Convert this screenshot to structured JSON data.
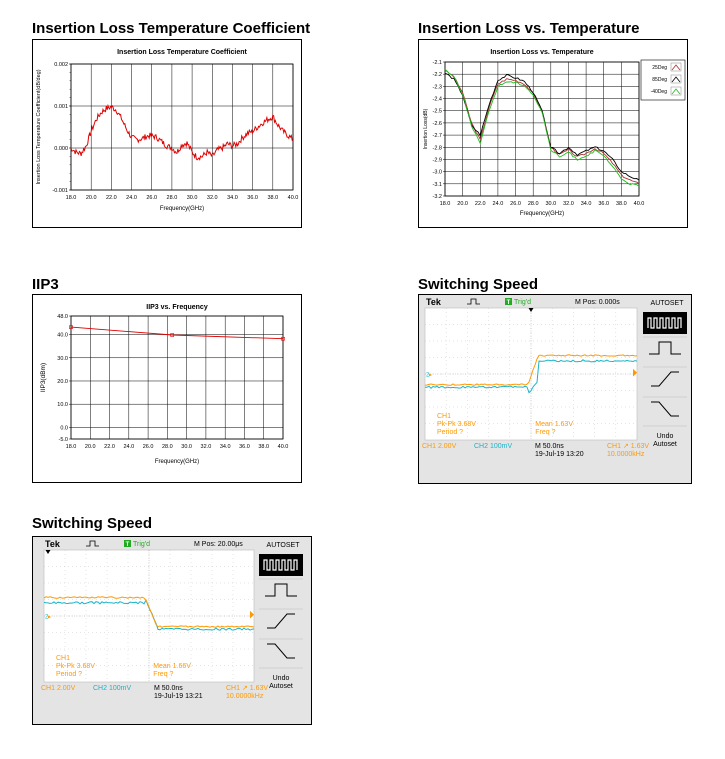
{
  "sections": {
    "il_coeff": "Insertion Loss Temperature Coefficient",
    "il_temp": "Insertion Loss vs. Temperature",
    "iip3": "IIP3",
    "sw1": "Switching Speed",
    "sw2": "Switching Speed"
  },
  "colors": {
    "trace_red": "#e00000",
    "scope_orange": "#ff9900",
    "scope_cyan": "#19b4c8",
    "trig_green": "#22aa22"
  },
  "chart_data": [
    {
      "id": "il_coeff",
      "type": "line",
      "title": "Insertion Loss Temperature Coefficient",
      "xlabel": "Frequency(GHz)",
      "ylabel": "Insertion Loss Temperature Coefficient(dB/deg)",
      "xlim": [
        18.0,
        40.0
      ],
      "ylim": [
        -0.001,
        0.002
      ],
      "xticks": [
        "18.0",
        "20.0",
        "22.0",
        "24.0",
        "26.0",
        "28.0",
        "30.0",
        "32.0",
        "34.0",
        "36.0",
        "38.0",
        "40.0"
      ],
      "yticks": [
        "0.002",
        "0.001",
        "0.000",
        "-0.001"
      ],
      "grid": true,
      "series": [
        {
          "color": "#e00000",
          "x": [
            18.0,
            18.5,
            19.0,
            19.5,
            20.0,
            20.5,
            21.0,
            21.5,
            22.0,
            22.5,
            23.0,
            23.5,
            24.0,
            24.5,
            25.0,
            25.5,
            26.0,
            26.5,
            27.0,
            27.5,
            28.0,
            28.5,
            29.0,
            29.5,
            30.0,
            30.5,
            31.0,
            31.5,
            32.0,
            32.5,
            33.0,
            33.5,
            34.0,
            34.5,
            35.0,
            35.5,
            36.0,
            36.5,
            37.0,
            37.5,
            38.0,
            38.5,
            39.0,
            39.5,
            40.0
          ],
          "y": [
            0.0,
            -0.0001,
            -0.00013,
            5e-05,
            0.0004,
            0.00068,
            0.00085,
            0.00094,
            0.00098,
            0.0009,
            0.0007,
            0.00045,
            0.00025,
            0.0002,
            0.00022,
            0.00028,
            0.0003,
            0.00025,
            0.00015,
            5e-05,
            0.0,
            -0.0001,
            8e-05,
            0.00012,
            -0.0001,
            -0.00022,
            -0.0002,
            -0.0001,
            -0.0002,
            -5e-05,
            0.0,
            0.0001,
            5e-05,
            0.0001,
            0.00025,
            0.00035,
            0.0004,
            0.0005,
            0.0006,
            0.00068,
            0.00075,
            0.00055,
            0.0004,
            0.0003,
            0.0002
          ]
        }
      ]
    },
    {
      "id": "il_temp",
      "type": "line",
      "title": "Insertion Loss vs. Temperature",
      "xlabel": "Frequency(GHz)",
      "ylabel": "Insertion Loss(dB)",
      "xlim": [
        18.0,
        40.0
      ],
      "ylim": [
        -3.2,
        -2.1
      ],
      "xticks": [
        "18.0",
        "20.0",
        "22.0",
        "24.0",
        "26.0",
        "28.0",
        "30.0",
        "32.0",
        "34.0",
        "36.0",
        "38.0",
        "40.0"
      ],
      "yticks": [
        "-2.1",
        "-2.2",
        "-2.3",
        "-2.4",
        "-2.5",
        "-2.6",
        "-2.7",
        "-2.8",
        "-2.9",
        "-3.0",
        "-3.1",
        "-3.2"
      ],
      "grid": true,
      "legend": "top-right",
      "series": [
        {
          "name": "25Deg",
          "color": "#b03030",
          "x": [
            18,
            19,
            20,
            21,
            22,
            23,
            24,
            25,
            26,
            27,
            28,
            29,
            30,
            31,
            32,
            33,
            34,
            35,
            36,
            37,
            38,
            39,
            40
          ],
          "y": [
            -2.17,
            -2.22,
            -2.35,
            -2.6,
            -2.74,
            -2.47,
            -2.28,
            -2.24,
            -2.25,
            -2.28,
            -2.36,
            -2.5,
            -2.8,
            -2.86,
            -2.82,
            -2.88,
            -2.85,
            -2.81,
            -2.85,
            -2.93,
            -3.03,
            -3.07,
            -3.1
          ]
        },
        {
          "name": "85Deg",
          "color": "#000000",
          "x": [
            18,
            19,
            20,
            21,
            22,
            23,
            24,
            25,
            26,
            27,
            28,
            29,
            30,
            31,
            32,
            33,
            34,
            35,
            36,
            37,
            38,
            39,
            40
          ],
          "y": [
            -2.19,
            -2.24,
            -2.37,
            -2.62,
            -2.7,
            -2.45,
            -2.25,
            -2.21,
            -2.23,
            -2.26,
            -2.35,
            -2.5,
            -2.8,
            -2.85,
            -2.8,
            -2.86,
            -2.83,
            -2.8,
            -2.83,
            -2.9,
            -3.0,
            -3.04,
            -3.07
          ]
        },
        {
          "name": "-40Deg",
          "color": "#22bb22",
          "x": [
            18,
            19,
            20,
            21,
            22,
            23,
            24,
            25,
            26,
            27,
            28,
            29,
            30,
            31,
            32,
            33,
            34,
            35,
            36,
            37,
            38,
            39,
            40
          ],
          "y": [
            -2.16,
            -2.22,
            -2.36,
            -2.62,
            -2.77,
            -2.5,
            -2.3,
            -2.26,
            -2.27,
            -2.29,
            -2.37,
            -2.51,
            -2.82,
            -2.88,
            -2.84,
            -2.9,
            -2.87,
            -2.83,
            -2.87,
            -2.96,
            -3.06,
            -3.1,
            -3.12
          ]
        }
      ]
    },
    {
      "id": "iip3",
      "type": "line",
      "title": "IIP3 vs. Frequency",
      "xlabel": "Frequency(GHz)",
      "ylabel": "IIP3(dBm)",
      "xlim": [
        18.0,
        40.0
      ],
      "ylim": [
        -5.0,
        48.0
      ],
      "xticks": [
        "18.0",
        "20.0",
        "22.0",
        "24.0",
        "26.0",
        "28.0",
        "30.0",
        "32.0",
        "34.0",
        "36.0",
        "38.0",
        "40.0"
      ],
      "yticks": [
        "48.0",
        "40.0",
        "30.0",
        "20.0",
        "10.0",
        "0.0",
        "-5.0"
      ],
      "grid": true,
      "series": [
        {
          "color": "#e00000",
          "x": [
            18.0,
            28.5,
            40.0
          ],
          "y": [
            43.2,
            39.8,
            38.2
          ]
        }
      ]
    }
  ],
  "scopes": [
    {
      "id": "sw1",
      "brand": "Tek",
      "trig": "Trig'd",
      "mpos": "M Pos: 0.000s",
      "menu_title": "AUTOSET",
      "undo_line1": "Undo",
      "undo_line2": "Autoset",
      "ch1_label": "CH1",
      "pkpk": "Pk-Pk 3.68V",
      "period": "Period ?",
      "mean": "Mean 1.63V",
      "freq": "Freq ?",
      "ch1_scale": "CH1  2.00V",
      "ch2_scale": "CH2  100mV",
      "m_scale": "M 50.0ns",
      "date": "19-Jul-19 13:20",
      "trig_level": "CH1  ↗  1.63V",
      "trig_freq": "10.0000kHz",
      "edge": "rising"
    },
    {
      "id": "sw2",
      "brand": "Tek",
      "trig": "Trig'd",
      "mpos": "M Pos: 20.00μs",
      "menu_title": "AUTOSET",
      "undo_line1": "Undo",
      "undo_line2": "Autoset",
      "ch1_label": "CH1",
      "pkpk": "Pk-Pk 3.68V",
      "period": "Period ?",
      "mean": "Mean 1.66V",
      "freq": "Freq ?",
      "ch1_scale": "CH1  2.00V",
      "ch2_scale": "CH2  100mV",
      "m_scale": "M 50.0ns",
      "date": "19-Jul-19 13:21",
      "trig_level": "CH1  ↗  1.63V",
      "trig_freq": "10.0000kHz",
      "edge": "falling"
    }
  ]
}
